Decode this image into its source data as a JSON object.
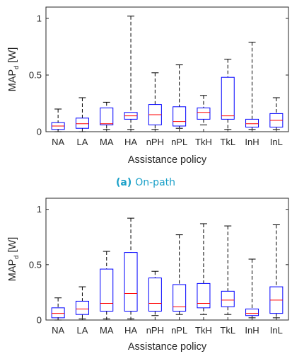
{
  "chart_data": [
    {
      "type": "box",
      "caption_label": "(a)",
      "caption_text": "On-path",
      "xlabel": "Assistance policy",
      "ylabel_main": "MAP",
      "ylabel_sub": "d",
      "ylabel_unit": " [W]",
      "ylim": [
        0,
        1.1
      ],
      "yticks": [
        0,
        0.5,
        1
      ],
      "ytick_labels": [
        "0",
        "0.5",
        "1"
      ],
      "categories": [
        "NA",
        "LA",
        "MA",
        "HA",
        "nPH",
        "nPL",
        "TkH",
        "TkL",
        "InH",
        "InL"
      ],
      "colors": {
        "box": "#0000ff",
        "median": "#ff0000",
        "whisker": "#000000"
      },
      "boxes": [
        {
          "whisker_low": 0.0,
          "q1": 0.02,
          "median": 0.05,
          "q3": 0.08,
          "whisker_high": 0.2
        },
        {
          "whisker_low": 0.0,
          "q1": 0.03,
          "median": 0.07,
          "q3": 0.12,
          "whisker_high": 0.3
        },
        {
          "whisker_low": 0.02,
          "q1": 0.06,
          "median": 0.07,
          "q3": 0.21,
          "whisker_high": 0.26
        },
        {
          "whisker_low": 0.02,
          "q1": 0.11,
          "median": 0.14,
          "q3": 0.17,
          "whisker_high": 1.02
        },
        {
          "whisker_low": 0.02,
          "q1": 0.06,
          "median": 0.15,
          "q3": 0.24,
          "whisker_high": 0.52
        },
        {
          "whisker_low": 0.03,
          "q1": 0.05,
          "median": 0.09,
          "q3": 0.22,
          "whisker_high": 0.59
        },
        {
          "whisker_low": 0.06,
          "q1": 0.11,
          "median": 0.17,
          "q3": 0.21,
          "whisker_high": 0.32
        },
        {
          "whisker_low": 0.02,
          "q1": 0.11,
          "median": 0.14,
          "q3": 0.48,
          "whisker_high": 0.64
        },
        {
          "whisker_low": 0.02,
          "q1": 0.04,
          "median": 0.07,
          "q3": 0.11,
          "whisker_high": 0.79
        },
        {
          "whisker_low": 0.02,
          "q1": 0.04,
          "median": 0.1,
          "q3": 0.16,
          "whisker_high": 0.3
        }
      ]
    },
    {
      "type": "box",
      "xlabel": "Assistance policy",
      "ylabel_main": "MAP",
      "ylabel_sub": "d",
      "ylabel_unit": " [W]",
      "ylim": [
        0,
        1.1
      ],
      "yticks": [
        0,
        0.5,
        1
      ],
      "ytick_labels": [
        "0",
        "0.5",
        "1"
      ],
      "categories": [
        "NA",
        "LA",
        "MA",
        "HA",
        "nPH",
        "nPL",
        "TkH",
        "TkL",
        "InH",
        "InL"
      ],
      "colors": {
        "box": "#0000ff",
        "median": "#ff0000",
        "whisker": "#000000"
      },
      "boxes": [
        {
          "whisker_low": 0.0,
          "q1": 0.02,
          "median": 0.06,
          "q3": 0.11,
          "whisker_high": 0.2
        },
        {
          "whisker_low": 0.01,
          "q1": 0.05,
          "median": 0.1,
          "q3": 0.17,
          "whisker_high": 0.3
        },
        {
          "whisker_low": 0.01,
          "q1": 0.08,
          "median": 0.15,
          "q3": 0.46,
          "whisker_high": 0.62
        },
        {
          "whisker_low": 0.01,
          "q1": 0.08,
          "median": 0.24,
          "q3": 0.61,
          "whisker_high": 0.92
        },
        {
          "whisker_low": 0.04,
          "q1": 0.08,
          "median": 0.15,
          "q3": 0.38,
          "whisker_high": 0.44
        },
        {
          "whisker_low": 0.05,
          "q1": 0.08,
          "median": 0.12,
          "q3": 0.32,
          "whisker_high": 0.77
        },
        {
          "whisker_low": 0.05,
          "q1": 0.11,
          "median": 0.15,
          "q3": 0.33,
          "whisker_high": 0.87
        },
        {
          "whisker_low": 0.05,
          "q1": 0.12,
          "median": 0.18,
          "q3": 0.26,
          "whisker_high": 0.85
        },
        {
          "whisker_low": 0.02,
          "q1": 0.04,
          "median": 0.06,
          "q3": 0.1,
          "whisker_high": 0.55
        },
        {
          "whisker_low": 0.02,
          "q1": 0.06,
          "median": 0.18,
          "q3": 0.3,
          "whisker_high": 0.86
        }
      ]
    }
  ]
}
